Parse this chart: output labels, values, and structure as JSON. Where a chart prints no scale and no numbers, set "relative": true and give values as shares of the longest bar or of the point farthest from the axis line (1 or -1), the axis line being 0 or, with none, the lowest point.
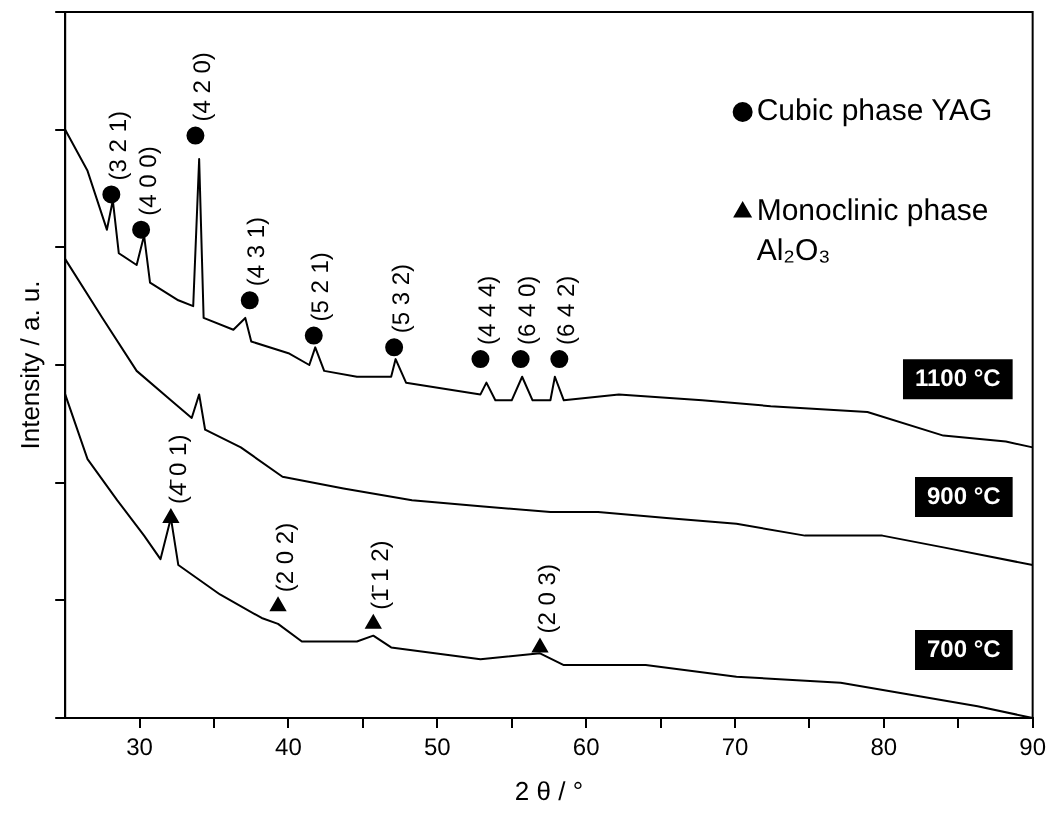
{
  "chart_data": {
    "type": "line",
    "xlabel": "2 θ / °",
    "ylabel": "Intensity / a. u.",
    "relative": true,
    "tick_labels": "x",
    "legend": "top right",
    "xlim": [
      25,
      90
    ],
    "xticks": [
      30,
      {
        "value": 35,
        "label": null
      },
      40,
      {
        "value": 45,
        "label": null
      },
      50,
      {
        "value": 55,
        "label": null
      },
      60,
      {
        "value": 65,
        "label": null
      },
      70,
      {
        "value": 75,
        "label": null
      },
      80,
      {
        "value": 85,
        "label": null
      },
      90
    ],
    "series": [
      {
        "name": "1100 °C",
        "color": "#000000",
        "x": [
          25,
          26.5,
          27.8,
          28.2,
          28.6,
          29.8,
          30.3,
          30.7,
          32.6,
          33.6,
          34.0,
          34.3,
          36.3,
          37.1,
          37.5,
          40.0,
          41.4,
          41.8,
          42.4,
          44.6,
          46.9,
          47.2,
          47.9,
          52.9,
          53.3,
          53.9,
          55.0,
          55.7,
          56.4,
          57.6,
          57.9,
          58.5,
          62.2,
          67.8,
          72.4,
          78.9,
          84.0,
          88.2,
          90
        ],
        "values": [
          1.0,
          0.93,
          0.83,
          0.88,
          0.79,
          0.77,
          0.82,
          0.74,
          0.71,
          0.7,
          0.95,
          0.68,
          0.66,
          0.68,
          0.64,
          0.62,
          0.6,
          0.63,
          0.59,
          0.58,
          0.58,
          0.61,
          0.57,
          0.55,
          0.57,
          0.54,
          0.54,
          0.58,
          0.54,
          0.54,
          0.58,
          0.54,
          0.55,
          0.54,
          0.53,
          0.52,
          0.48,
          0.47,
          0.46
        ]
      },
      {
        "name": "900 °C",
        "color": "#000000",
        "x": [
          25,
          27.5,
          29.8,
          32.1,
          33.5,
          34.0,
          34.4,
          36.8,
          39.6,
          43.7,
          48.3,
          52.9,
          57.6,
          60.8,
          65.4,
          70.1,
          74.7,
          79.9,
          84.0,
          90
        ],
        "values": [
          0.78,
          0.68,
          0.59,
          0.54,
          0.51,
          0.55,
          0.49,
          0.46,
          0.41,
          0.39,
          0.37,
          0.36,
          0.35,
          0.35,
          0.34,
          0.33,
          0.31,
          0.31,
          0.29,
          0.26
        ]
      },
      {
        "name": "700 °C",
        "color": "#000000",
        "x": [
          25,
          26.5,
          28.5,
          30.3,
          31.4,
          32.1,
          32.6,
          35.4,
          38.2,
          39.3,
          40.9,
          44.6,
          45.7,
          46.9,
          52.9,
          56.9,
          58.5,
          64.0,
          70.1,
          77.1,
          81.7,
          86.3,
          90
        ],
        "values": [
          0.55,
          0.44,
          0.37,
          0.31,
          0.27,
          0.34,
          0.26,
          0.21,
          0.17,
          0.16,
          0.13,
          0.13,
          0.14,
          0.12,
          0.1,
          0.11,
          0.09,
          0.09,
          0.07,
          0.06,
          0.04,
          0.02,
          0.0
        ]
      },
      {
        "name": "Cubic phase YAG",
        "type": "scatter",
        "marker": "circle",
        "color": "#000000",
        "x": [
          28.1,
          30.1,
          33.75,
          37.4,
          41.7,
          47.1,
          52.9,
          55.6,
          58.2
        ],
        "values": [
          0.89,
          0.83,
          0.99,
          0.71,
          0.65,
          0.63,
          0.61,
          0.61,
          0.61
        ]
      },
      {
        "name": "Monoclinic phase Al₂O₃",
        "type": "scatter",
        "marker": "triangle",
        "color": "#000000",
        "x": [
          32.1,
          39.3,
          45.7,
          56.9
        ],
        "values": [
          0.34,
          0.19,
          0.16,
          0.12
        ]
      }
    ],
    "annotations": [
      {
        "text": "(3 2 1)",
        "x": 28.1,
        "y": 0.89
      },
      {
        "text": "(4 0 0)",
        "x": 30.1,
        "y": 0.83
      },
      {
        "text": "(4 2 0)",
        "x": 33.75,
        "y": 0.99
      },
      {
        "text": "(4 3 1)",
        "x": 37.4,
        "y": 0.71
      },
      {
        "text": "(5 2 1)",
        "x": 41.7,
        "y": 0.65
      },
      {
        "text": "(5 3 2)",
        "x": 47.1,
        "y": 0.63
      },
      {
        "text": "(4 4 4)",
        "x": 52.9,
        "y": 0.61
      },
      {
        "text": "(6 4 0)",
        "x": 55.6,
        "y": 0.61
      },
      {
        "text": "(6 4 2)",
        "x": 58.2,
        "y": 0.61
      },
      {
        "text": "(4̄ 0 1)",
        "x": 32.1,
        "y": 0.34
      },
      {
        "text": "(2 0 2)",
        "x": 39.3,
        "y": 0.19
      },
      {
        "text": "(1̄ 1 2)",
        "x": 45.7,
        "y": 0.16
      },
      {
        "text": "(2 0 3)",
        "x": 56.9,
        "y": 0.12
      }
    ]
  }
}
